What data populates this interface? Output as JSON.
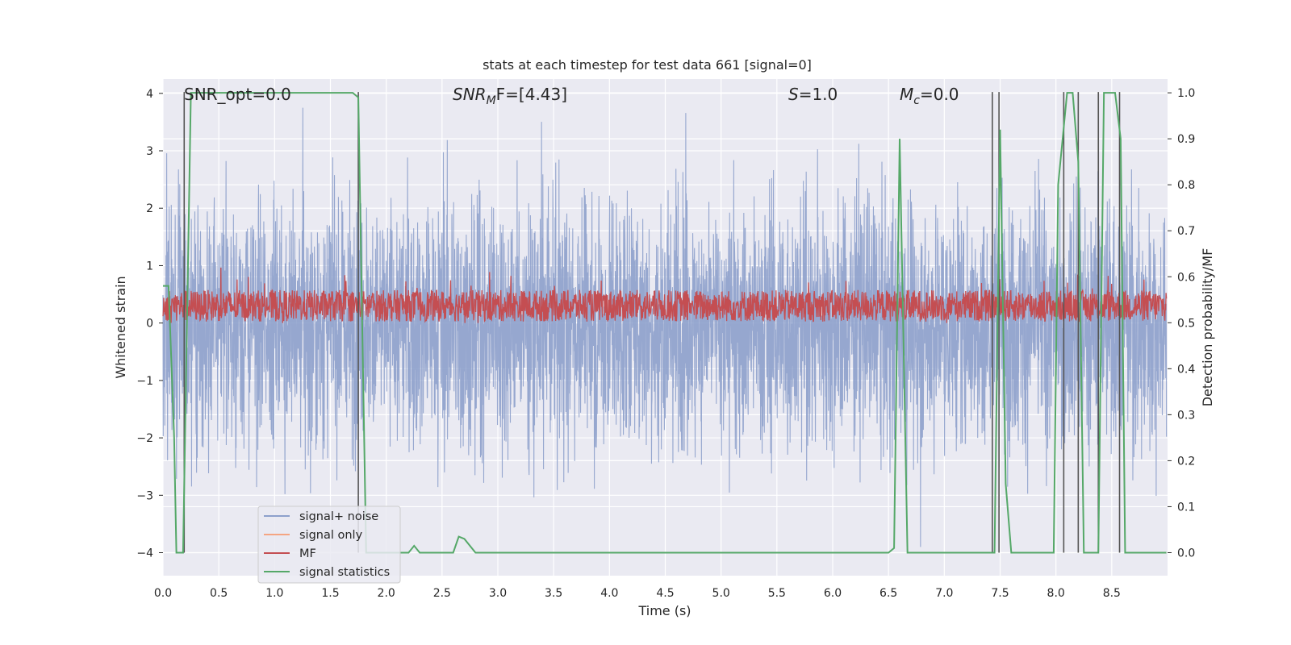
{
  "chart_data": {
    "type": "line",
    "title": "stats at each timestep for test data 661 [signal=0]",
    "xlabel": "Time (s)",
    "ylabel_left": "Whitened strain",
    "ylabel_right": "Detection probability/MF",
    "xlim": [
      0.0,
      9.0
    ],
    "ylim_left": [
      -4.4,
      4.25
    ],
    "ylim_right": [
      -0.05,
      1.03
    ],
    "x_ticks": [
      "0.0",
      "0.5",
      "1.0",
      "1.5",
      "2.0",
      "2.5",
      "3.0",
      "3.5",
      "4.0",
      "4.5",
      "5.0",
      "5.5",
      "6.0",
      "6.5",
      "7.0",
      "7.5",
      "8.0",
      "8.5"
    ],
    "x_tick_values": [
      0.0,
      0.5,
      1.0,
      1.5,
      2.0,
      2.5,
      3.0,
      3.5,
      4.0,
      4.5,
      5.0,
      5.5,
      6.0,
      6.5,
      7.0,
      7.5,
      8.0,
      8.5
    ],
    "y_ticks_left": [
      "4",
      "3",
      "2",
      "1",
      "0",
      "−1",
      "−2",
      "−3",
      "−4"
    ],
    "y_tick_values_left": [
      4,
      3,
      2,
      1,
      0,
      -1,
      -2,
      -3,
      -4
    ],
    "y_ticks_right": [
      "1.0",
      "0.9",
      "0.8",
      "0.7",
      "0.6",
      "0.5",
      "0.4",
      "0.3",
      "0.2",
      "0.1",
      "0.0"
    ],
    "y_tick_values_right": [
      1.0,
      0.9,
      0.8,
      0.7,
      0.6,
      0.5,
      0.4,
      0.3,
      0.2,
      0.1,
      0.0
    ],
    "grid": true,
    "legend_position": "lower-left",
    "annotations": {
      "snr_opt": "SNR_opt=0.0",
      "snr_mf_sym": "SNR",
      "snr_mf_sub": "M",
      "snr_mf_rest": "F=[4.43]",
      "s_sym": "S",
      "s_rest": "=1.0",
      "mc_sym": "M",
      "mc_sub": "c",
      "mc_rest": "=0.0"
    },
    "series": [
      {
        "name": "signal+ noise",
        "color": "#8da0cb",
        "axis": "left",
        "description_values": "dense whitened noise, amplitude roughly within ±3.5"
      },
      {
        "name": "signal only",
        "color": "#f5a582",
        "axis": "left",
        "values": []
      },
      {
        "name": "MF",
        "color": "#c44e52",
        "axis": "left",
        "description_values": "matched filter output fluctuating between about 0.0 and 0.8"
      },
      {
        "name": "signal statistics",
        "color": "#55a868",
        "axis": "right",
        "x": [
          0.0,
          0.05,
          0.1,
          0.12,
          0.18,
          0.25,
          0.5,
          1.0,
          1.5,
          1.7,
          1.75,
          1.82,
          1.9,
          2.0,
          2.15,
          2.2,
          2.25,
          2.3,
          2.4,
          2.55,
          2.6,
          2.65,
          2.7,
          2.8,
          3.0,
          4.0,
          5.0,
          6.0,
          6.5,
          6.55,
          6.6,
          6.67,
          6.7,
          7.0,
          7.4,
          7.45,
          7.5,
          7.55,
          7.6,
          7.65,
          7.7,
          7.9,
          7.98,
          8.02,
          8.1,
          8.15,
          8.2,
          8.25,
          8.3,
          8.33,
          8.38,
          8.43,
          8.48,
          8.53,
          8.58,
          8.62,
          8.68,
          8.75,
          8.99
        ],
        "values": [
          0.58,
          0.58,
          0.25,
          0.0,
          0.0,
          1.0,
          1.0,
          1.0,
          1.0,
          1.0,
          0.99,
          0.0,
          0.0,
          0.0,
          0.0,
          0.0,
          0.015,
          0.0,
          0.0,
          0.0,
          0.0,
          0.035,
          0.03,
          0.0,
          0.0,
          0.0,
          0.0,
          0.0,
          0.0,
          0.01,
          0.9,
          0.0,
          0.0,
          0.0,
          0.0,
          0.0,
          0.92,
          0.15,
          0.0,
          0.0,
          0.0,
          0.0,
          0.0,
          0.8,
          1.0,
          1.0,
          0.85,
          0.0,
          0.0,
          0.0,
          0.0,
          1.0,
          1.0,
          1.0,
          0.9,
          0.0,
          0.0,
          0.0,
          0.0
        ]
      }
    ],
    "event_markers_x": [
      0.19,
      1.75,
      7.43,
      7.49,
      8.07,
      8.2,
      8.38,
      8.57
    ],
    "event_marker_color": "#555555"
  }
}
